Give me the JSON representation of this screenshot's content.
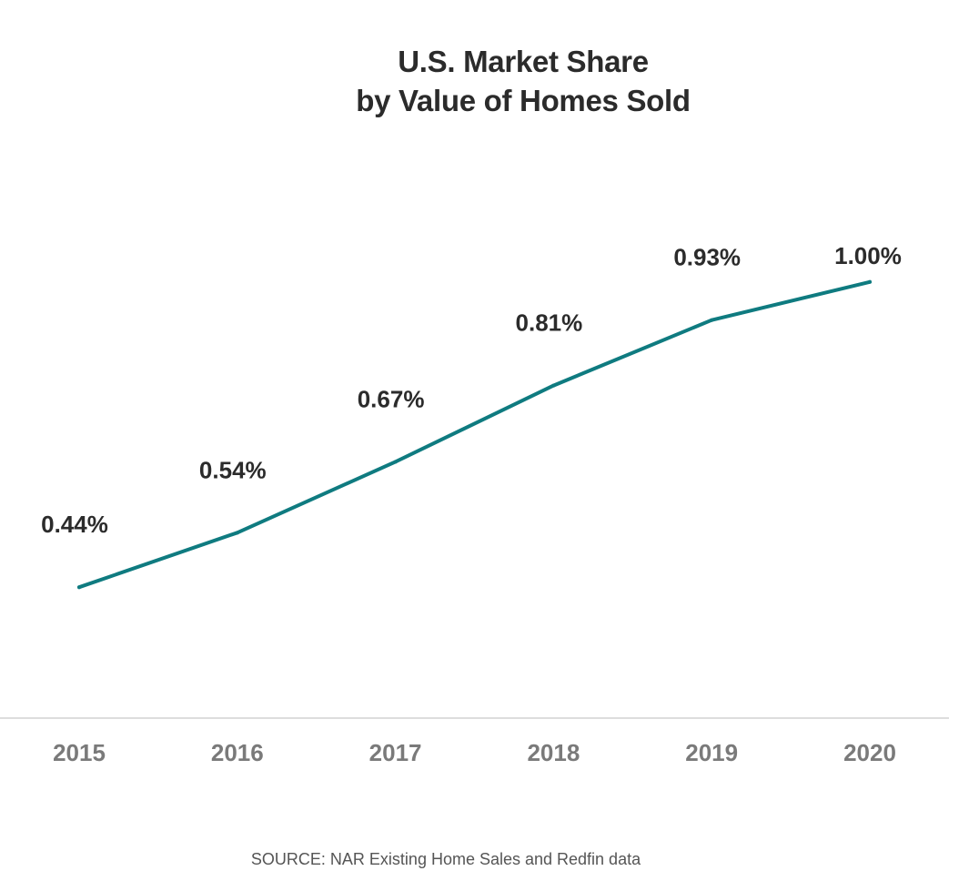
{
  "chart_data": {
    "type": "line",
    "title": [
      "U.S. Market Share",
      "by Value of Homes Sold"
    ],
    "categories": [
      "2015",
      "2016",
      "2017",
      "2018",
      "2019",
      "2020"
    ],
    "series": [
      {
        "values": [
          0.44,
          0.54,
          0.67,
          0.81,
          0.93,
          1.0
        ],
        "data_labels": [
          "0.44%",
          "0.54%",
          "0.67%",
          "0.81%",
          "0.93%",
          "1.00%"
        ]
      }
    ],
    "ylim": [
      0.2,
      1.25
    ],
    "grid": false,
    "legend": "none",
    "line_color": "#0f7b80",
    "baseline_color": "#dddddd",
    "source": "SOURCE: NAR Existing Home Sales and Redfin data"
  }
}
